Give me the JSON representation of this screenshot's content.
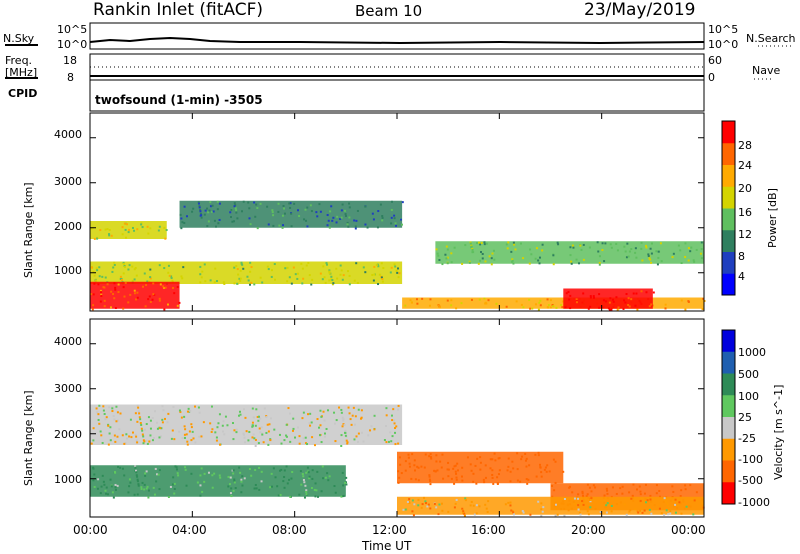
{
  "header": {
    "station": "Rankin Inlet (fitACF)",
    "beam": "Beam 10",
    "date": "23/May/2019"
  },
  "nsky_panel": {
    "left_label": "N.Sky",
    "right_label": "N.Search",
    "left_ticks": [
      "10^5",
      "10^0"
    ],
    "right_ticks": [
      "10^5",
      "10^0"
    ]
  },
  "freq_panel": {
    "left_label_1": "Freq.",
    "left_label_2": "[MHz]",
    "right_label": "Nave",
    "left_ticks": [
      "18",
      "8"
    ],
    "right_ticks": [
      "60",
      "0"
    ]
  },
  "cpid_panel": {
    "label": "CPID",
    "program": "twofsound (1-min) -3505"
  },
  "colors": {
    "power": [
      "#0000ff",
      "#1f3fbf",
      "#2f7f5f",
      "#5fbf5f",
      "#d4d400",
      "#ffaa00",
      "#ff6600",
      "#ff0000"
    ],
    "velocity": [
      "#0000dd",
      "#1f5fb0",
      "#2e8b57",
      "#5fc85f",
      "#c8c8c8",
      "#ff9900",
      "#ff6600",
      "#ff0000"
    ]
  },
  "chart_data": [
    {
      "type": "heatmap",
      "title": "",
      "xlabel": "Time UT",
      "ylabel": "Slant Range [km]",
      "xlim": [
        "00:00",
        "24:00"
      ],
      "ylim": [
        150,
        4550
      ],
      "x_ticks": [
        "00:00",
        "04:00",
        "08:00",
        "12:00",
        "16:00",
        "20:00",
        "00:00"
      ],
      "y_ticks": [
        1000,
        2000,
        3000,
        4000
      ],
      "colorbar": {
        "label": "Power [dB]",
        "range": [
          0,
          32
        ],
        "ticks": [
          "4",
          "8",
          "12",
          "16",
          "20",
          "24",
          "28"
        ]
      },
      "regions": [
        {
          "t": [
            0.0,
            3.0
          ],
          "r": [
            1750,
            2150
          ],
          "power": 18
        },
        {
          "t": [
            3.5,
            12.2
          ],
          "r": [
            2000,
            2600
          ],
          "power": 10
        },
        {
          "t": [
            0.0,
            12.2
          ],
          "r": [
            750,
            1250
          ],
          "power": 16
        },
        {
          "t": [
            0.0,
            3.5
          ],
          "r": [
            200,
            800
          ],
          "power": 28
        },
        {
          "t": [
            12.2,
            24.0
          ],
          "r": [
            200,
            450
          ],
          "power": 22
        },
        {
          "t": [
            13.5,
            24.0
          ],
          "r": [
            1200,
            1700
          ],
          "power": 14
        },
        {
          "t": [
            18.5,
            22.0
          ],
          "r": [
            200,
            650
          ],
          "power": 30
        }
      ]
    },
    {
      "type": "heatmap",
      "title": "",
      "xlabel": "Time UT",
      "ylabel": "Slant Range [km]",
      "xlim": [
        "00:00",
        "24:00"
      ],
      "ylim": [
        150,
        4550
      ],
      "x_ticks": [
        "00:00",
        "04:00",
        "08:00",
        "12:00",
        "16:00",
        "20:00",
        "00:00"
      ],
      "y_ticks": [
        1000,
        2000,
        3000,
        4000
      ],
      "colorbar": {
        "label": "Velocity [m s^-1]",
        "ticks": [
          "1000",
          "500",
          "100",
          "25",
          "-25",
          "-100",
          "-500",
          "-1000"
        ]
      },
      "regions": [
        {
          "t": [
            0.0,
            12.2
          ],
          "r": [
            1750,
            2650
          ],
          "velocity": 0
        },
        {
          "t": [
            0.0,
            10.0
          ],
          "r": [
            600,
            1300
          ],
          "velocity": 100
        },
        {
          "t": [
            12.0,
            18.5
          ],
          "r": [
            900,
            1600
          ],
          "velocity": -300
        },
        {
          "t": [
            18.0,
            24.0
          ],
          "r": [
            300,
            900
          ],
          "velocity": -200
        },
        {
          "t": [
            12.0,
            24.0
          ],
          "r": [
            200,
            600
          ],
          "velocity": -50
        }
      ]
    }
  ]
}
